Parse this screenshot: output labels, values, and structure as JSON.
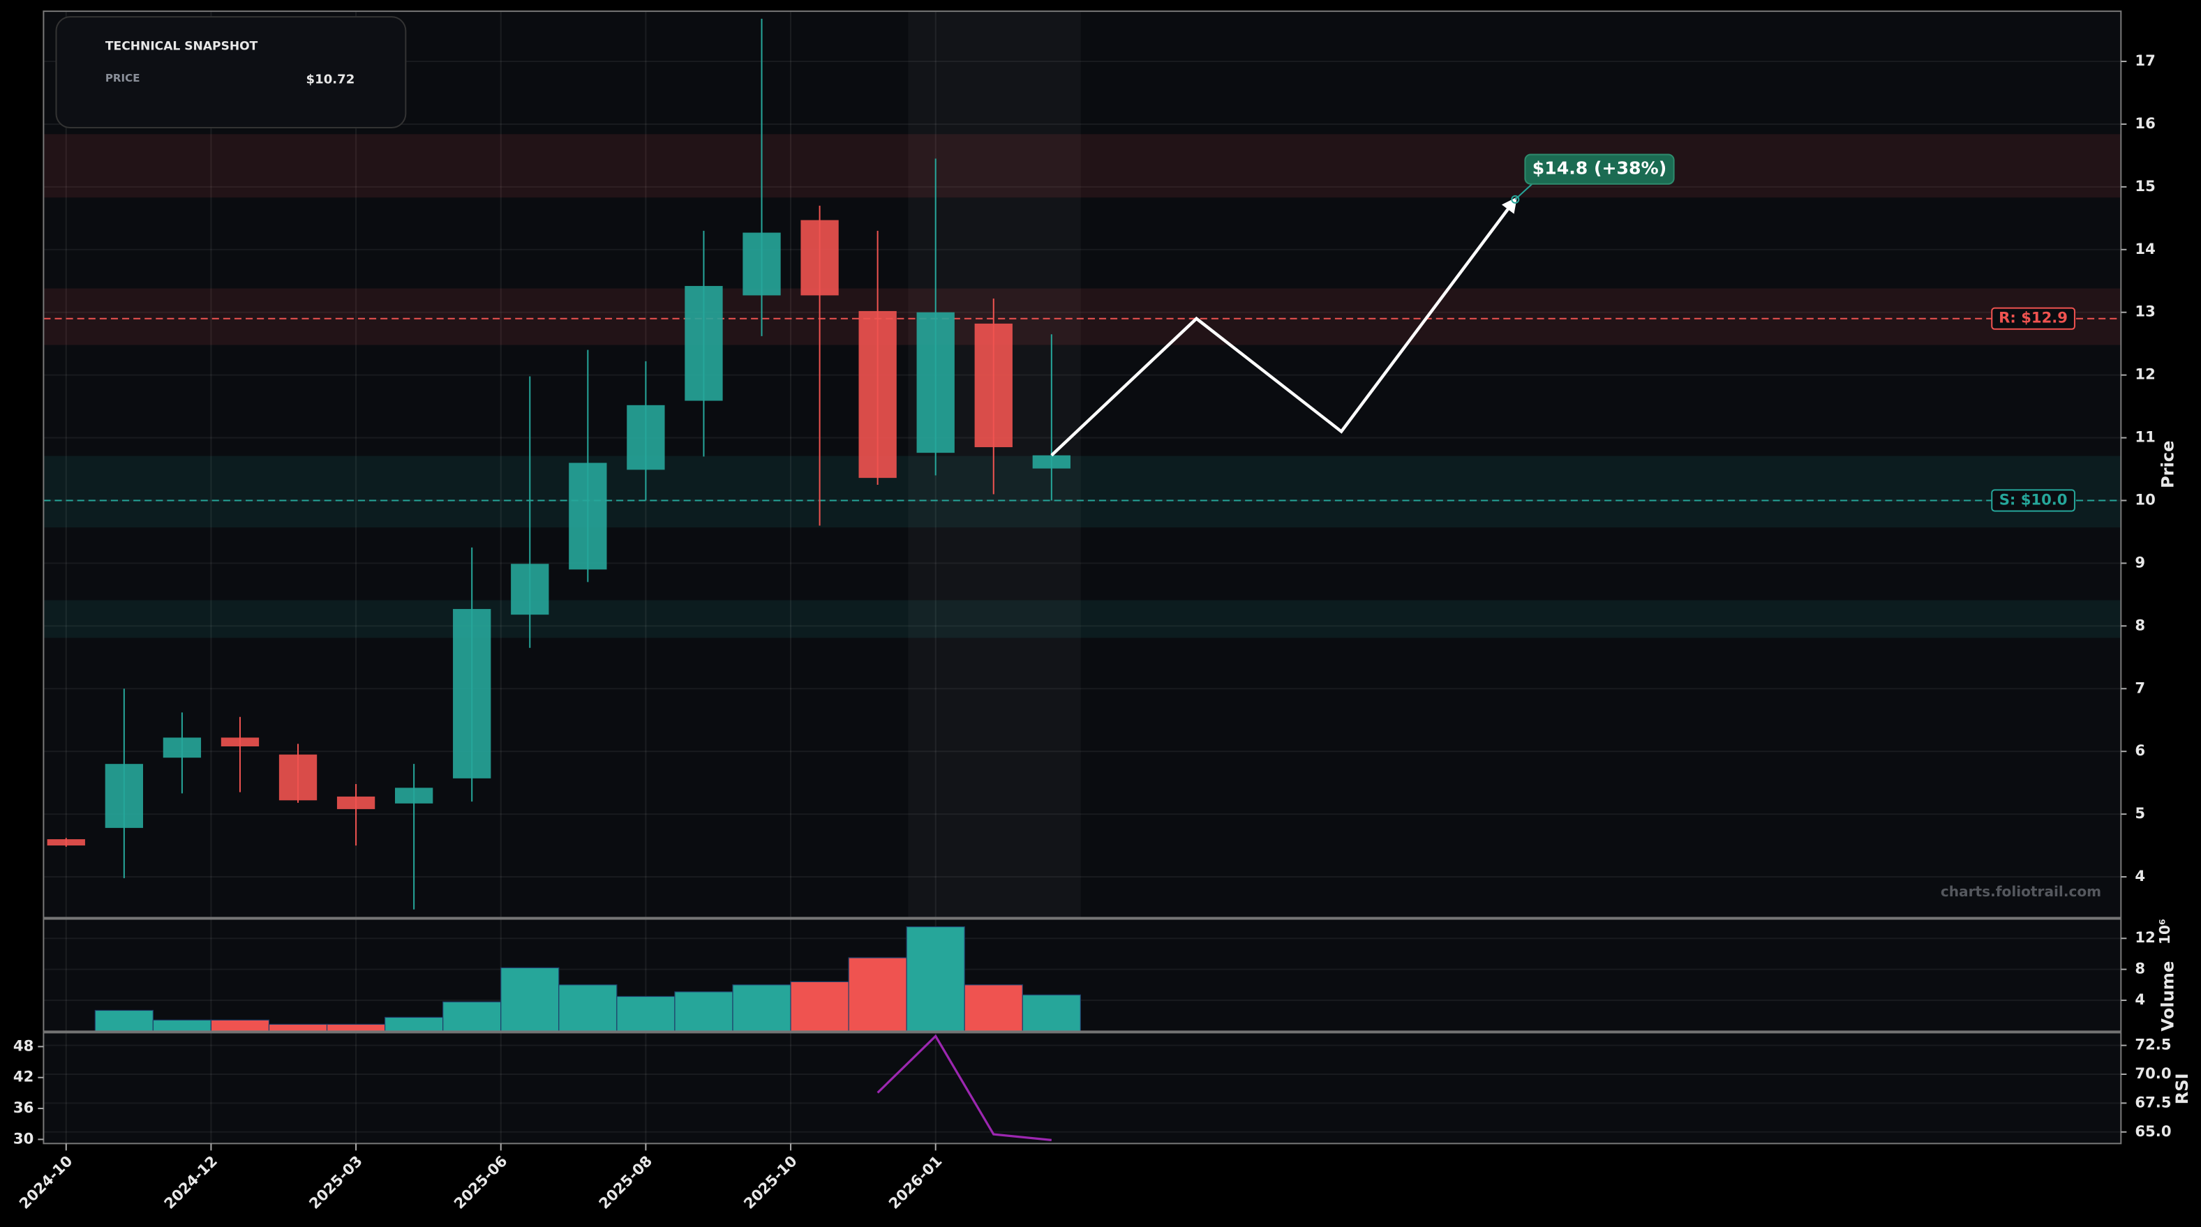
{
  "chart_data": [
    {
      "type": "candlestick",
      "snapshot": {
        "title": "TECHNICAL SNAPSHOT",
        "price_label": "PRICE",
        "price": "$10.72"
      },
      "watermark": "charts.foliotrail.com",
      "ylabel": "Price",
      "x": [
        0,
        1,
        2,
        3,
        4,
        5,
        6,
        7,
        8,
        9,
        10,
        11,
        12,
        13,
        14,
        15,
        16,
        17
      ],
      "open": [
        4.6,
        4.78,
        5.9,
        6.22,
        5.95,
        5.28,
        5.17,
        5.57,
        8.18,
        8.9,
        10.49,
        11.59,
        13.27,
        14.47,
        13.02,
        10.76,
        12.82,
        10.51
      ],
      "high": [
        4.62,
        7.0,
        6.62,
        6.55,
        6.12,
        5.48,
        5.8,
        9.25,
        11.98,
        12.4,
        12.22,
        14.3,
        17.68,
        14.7,
        14.3,
        15.45,
        13.22,
        12.65
      ],
      "low": [
        4.48,
        3.98,
        5.33,
        5.35,
        5.18,
        4.5,
        3.48,
        5.2,
        7.65,
        8.7,
        10.0,
        10.7,
        12.62,
        9.6,
        10.25,
        10.4,
        10.1,
        10.0
      ],
      "close": [
        4.5,
        5.8,
        6.22,
        6.08,
        5.22,
        5.08,
        5.42,
        8.27,
        8.99,
        10.6,
        11.52,
        13.42,
        14.27,
        13.27,
        10.36,
        13.0,
        10.85,
        10.72
      ],
      "up_color": "#26a69a",
      "down_color": "#ef5350",
      "xlim": [
        -0.39,
        35.45
      ],
      "xticks": [
        {
          "value": 0,
          "label": "2024-10"
        },
        {
          "value": 2.5,
          "label": "2024-12"
        },
        {
          "value": 5,
          "label": "2025-03"
        },
        {
          "value": 7.5,
          "label": "2025-06"
        },
        {
          "value": 10,
          "label": "2025-08"
        },
        {
          "value": 12.5,
          "label": "2025-10"
        },
        {
          "value": 15,
          "label": "2026-01"
        }
      ],
      "ylim": [
        3.35,
        17.8
      ],
      "yticks": [
        4,
        5,
        6,
        7,
        8,
        9,
        10,
        11,
        12,
        13,
        14,
        15,
        16,
        17
      ],
      "grid": true,
      "resistance": {
        "value": 12.9,
        "label": "R: $12.9",
        "color": "#ef5350"
      },
      "support": {
        "value": 10.0,
        "label": "S: $10.0",
        "color": "#26a69a"
      },
      "zones": [
        {
          "from": 14.83,
          "to": 15.84,
          "color": "#ef5350"
        },
        {
          "from": 12.48,
          "to": 13.38,
          "color": "#ef5350"
        },
        {
          "from": 9.57,
          "to": 10.71,
          "color": "#26a69a"
        },
        {
          "from": 7.81,
          "to": 8.41,
          "color": "#26a69a"
        }
      ],
      "projection": {
        "x": [
          17,
          19.5,
          22,
          25
        ],
        "values": [
          10.72,
          12.9,
          11.1,
          14.8
        ],
        "color": "#ffffff",
        "label": "$14.8 (+38%)"
      }
    },
    {
      "type": "bar",
      "ylabel": "Volume",
      "scale_label": "10⁶",
      "x": [
        0,
        1,
        2,
        3,
        4,
        5,
        6,
        7,
        8,
        9,
        10,
        11,
        12,
        13,
        14,
        15,
        16,
        17
      ],
      "values": [
        null,
        2.7,
        1.45,
        1.45,
        0.9,
        0.9,
        1.8,
        3.8,
        8.2,
        6.0,
        4.5,
        5.1,
        6.0,
        6.4,
        9.5,
        13.5,
        6.0,
        4.7
      ],
      "ylim": [
        0,
        14.5
      ],
      "yticks": [
        4,
        8,
        12
      ]
    },
    {
      "type": "line",
      "ylabel": "RSI",
      "x": [
        14,
        15,
        16,
        17
      ],
      "values": [
        68.4,
        73.3,
        64.8,
        64.3
      ],
      "color": "#9c27b0",
      "ylim": [
        64.0,
        73.6
      ],
      "yticks": [
        72.5,
        {
          "value": 70,
          "label": "70.0"
        },
        67.5,
        {
          "value": 65,
          "label": "65.0"
        }
      ],
      "y2lim": [
        29.2,
        50.7
      ],
      "y2ticks": [
        30,
        36,
        42,
        48
      ]
    }
  ]
}
